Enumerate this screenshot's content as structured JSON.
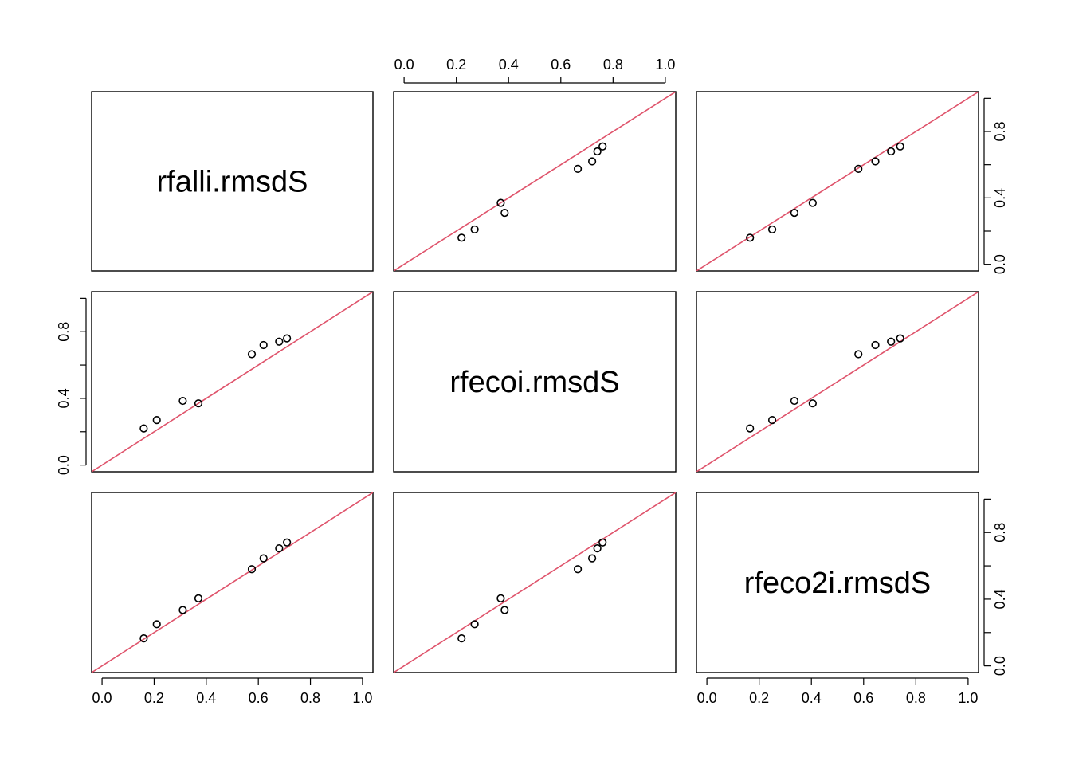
{
  "chart_data": {
    "type": "scatter",
    "layout": "pairs-matrix",
    "variables": [
      "rfalli.rmsdS",
      "rfecoi.rmsdS",
      "rfeco2i.rmsdS"
    ],
    "values": {
      "rfalli.rmsdS": [
        0.16,
        0.21,
        0.31,
        0.37,
        0.575,
        0.62,
        0.68,
        0.71
      ],
      "rfecoi.rmsdS": [
        0.22,
        0.27,
        0.385,
        0.37,
        0.665,
        0.72,
        0.74,
        0.76
      ],
      "rfeco2i.rmsdS": [
        0.165,
        0.25,
        0.335,
        0.405,
        0.58,
        0.645,
        0.705,
        0.74
      ]
    },
    "axis_range": [
      -0.04,
      1.04
    ],
    "ticks": [
      0.0,
      0.2,
      0.4,
      0.6,
      0.8,
      1.0
    ],
    "tick_labels": [
      "0.0",
      "0.2",
      "0.4",
      "0.6",
      "0.8",
      "1.0"
    ],
    "side_tick_labels": [
      "0.0",
      "0.4",
      "0.8"
    ],
    "reference_line": {
      "slope": 1,
      "intercept": 0,
      "color": "#df536b"
    },
    "point_color": "#000000",
    "grid": false
  }
}
